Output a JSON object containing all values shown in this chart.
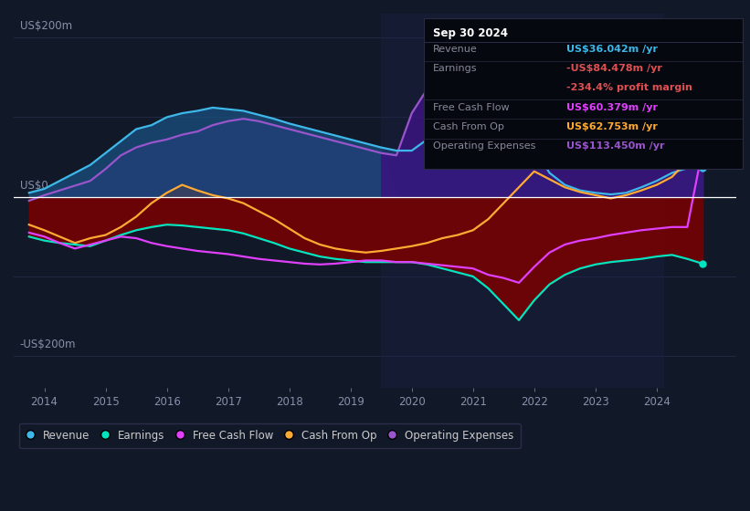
{
  "bg_color": "#111827",
  "plot_bg_color": "#111827",
  "ylabel_200": "US$200m",
  "ylabel_0": "US$0",
  "ylabel_neg200": "-US$200m",
  "xlim": [
    2013.5,
    2025.3
  ],
  "ylim": [
    -240,
    230
  ],
  "zero_line_color": "#ffffff",
  "grid_color": "#2a3050",
  "revenue_color": "#3eb8e8",
  "earnings_color": "#00e5c0",
  "fcf_color": "#e040fb",
  "cashfromop_color": "#ffaa33",
  "opex_color": "#9955cc",
  "legend_labels": [
    "Revenue",
    "Earnings",
    "Free Cash Flow",
    "Cash From Op",
    "Operating Expenses"
  ],
  "legend_colors": [
    "#3eb8e8",
    "#00e5c0",
    "#e040fb",
    "#ffaa33",
    "#9955cc"
  ],
  "info_box": {
    "title": "Sep 30 2024",
    "rows": [
      {
        "label": "Revenue",
        "value": "US$36.042m /yr",
        "value_color": "#3eb8e8"
      },
      {
        "label": "Earnings",
        "value": "-US$84.478m /yr",
        "value_color": "#e05050"
      },
      {
        "label": "",
        "value": "-234.4% profit margin",
        "value_color": "#e05050"
      },
      {
        "label": "Free Cash Flow",
        "value": "US$60.379m /yr",
        "value_color": "#e040fb"
      },
      {
        "label": "Cash From Op",
        "value": "US$62.753m /yr",
        "value_color": "#ffaa33"
      },
      {
        "label": "Operating Expenses",
        "value": "US$113.450m /yr",
        "value_color": "#9955cc"
      }
    ]
  },
  "years": [
    2013.75,
    2014.0,
    2014.25,
    2014.5,
    2014.75,
    2015.0,
    2015.25,
    2015.5,
    2015.75,
    2016.0,
    2016.25,
    2016.5,
    2016.75,
    2017.0,
    2017.25,
    2017.5,
    2017.75,
    2018.0,
    2018.25,
    2018.5,
    2018.75,
    2019.0,
    2019.25,
    2019.5,
    2019.75,
    2020.0,
    2020.25,
    2020.5,
    2020.75,
    2021.0,
    2021.25,
    2021.5,
    2021.75,
    2022.0,
    2022.25,
    2022.5,
    2022.75,
    2023.0,
    2023.25,
    2023.5,
    2023.75,
    2024.0,
    2024.25,
    2024.5,
    2024.75
  ],
  "revenue": [
    5,
    10,
    20,
    30,
    40,
    55,
    70,
    85,
    90,
    100,
    105,
    108,
    112,
    110,
    108,
    103,
    98,
    92,
    87,
    82,
    77,
    72,
    67,
    62,
    58,
    58,
    72,
    95,
    110,
    112,
    110,
    105,
    95,
    60,
    30,
    15,
    8,
    5,
    3,
    5,
    12,
    20,
    30,
    36,
    36
  ],
  "earnings": [
    -50,
    -55,
    -58,
    -60,
    -62,
    -55,
    -48,
    -42,
    -38,
    -35,
    -36,
    -38,
    -40,
    -42,
    -46,
    -52,
    -58,
    -65,
    -70,
    -75,
    -78,
    -80,
    -82,
    -82,
    -82,
    -82,
    -85,
    -90,
    -95,
    -100,
    -115,
    -135,
    -155,
    -130,
    -110,
    -98,
    -90,
    -85,
    -82,
    -80,
    -78,
    -75,
    -73,
    -78,
    -84
  ],
  "fcf": [
    -45,
    -50,
    -58,
    -65,
    -60,
    -55,
    -50,
    -52,
    -58,
    -62,
    -65,
    -68,
    -70,
    -72,
    -75,
    -78,
    -80,
    -82,
    -84,
    -85,
    -84,
    -82,
    -80,
    -80,
    -82,
    -82,
    -84,
    -86,
    -88,
    -90,
    -98,
    -102,
    -108,
    -88,
    -70,
    -60,
    -55,
    -52,
    -48,
    -45,
    -42,
    -40,
    -38,
    -38,
    60
  ],
  "cashfromop": [
    -35,
    -42,
    -50,
    -58,
    -52,
    -48,
    -38,
    -25,
    -8,
    5,
    15,
    8,
    2,
    -2,
    -8,
    -18,
    -28,
    -40,
    -52,
    -60,
    -65,
    -68,
    -70,
    -68,
    -65,
    -62,
    -58,
    -52,
    -48,
    -42,
    -28,
    -8,
    12,
    32,
    22,
    12,
    6,
    2,
    -2,
    2,
    8,
    15,
    25,
    45,
    62
  ],
  "opex": [
    -5,
    2,
    8,
    14,
    20,
    35,
    52,
    62,
    68,
    72,
    78,
    82,
    90,
    95,
    98,
    95,
    90,
    85,
    80,
    75,
    70,
    65,
    60,
    55,
    52,
    105,
    135,
    152,
    162,
    165,
    162,
    152,
    148,
    132,
    122,
    112,
    102,
    96,
    92,
    100,
    105,
    110,
    115,
    113,
    113
  ]
}
